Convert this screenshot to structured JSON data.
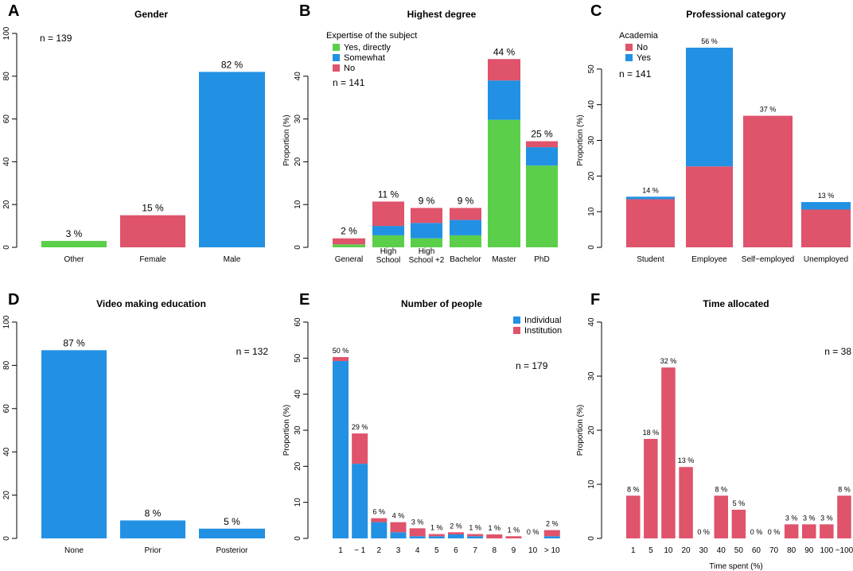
{
  "colors": {
    "green": "#5ccf4a",
    "blue": "#2291e3",
    "red": "#df536b"
  },
  "chart_data": [
    {
      "id": "A",
      "panel_label": "A",
      "type": "bar",
      "title": "Gender",
      "ylabel": "Proportion (%)",
      "xlabel": "",
      "ylim": [
        0,
        100
      ],
      "yticks": [
        "0",
        "20",
        "40",
        "60",
        "80",
        "100"
      ],
      "n_label": "n = 139",
      "categories": [
        "Other",
        "Female",
        "Male"
      ],
      "series": [
        {
          "name": "",
          "values": [
            3,
            15,
            82
          ],
          "colors": [
            "green",
            "red",
            "blue"
          ]
        }
      ],
      "bar_labels": [
        "3 %",
        "15 %",
        "82 %"
      ]
    },
    {
      "id": "B",
      "panel_label": "B",
      "type": "bar",
      "stacked": true,
      "title": "Highest degree",
      "ylabel": "Proportion (%)",
      "xlabel": "",
      "ylim": [
        0,
        50
      ],
      "yticks": [
        "0",
        "10",
        "20",
        "30",
        "40"
      ],
      "n_label": "n = 141",
      "legend_title": "Expertise of the subject",
      "categories": [
        "General",
        "High|School",
        "High|School +2",
        "Bachelor",
        "Master",
        "PhD"
      ],
      "series": [
        {
          "name": "Yes, directly",
          "color": "green",
          "values": [
            0.7,
            2.8,
            2.1,
            2.8,
            29.8,
            19.1
          ]
        },
        {
          "name": "Somewhat",
          "color": "blue",
          "values": [
            0,
            2.2,
            3.6,
            3.6,
            9.2,
            4.3
          ]
        },
        {
          "name": "No",
          "color": "red",
          "values": [
            1.4,
            5.7,
            3.5,
            2.8,
            5.0,
            1.4
          ]
        }
      ],
      "bar_labels": [
        "2 %",
        "11 %",
        "9 %",
        "9 %",
        "44 %",
        "25 %"
      ]
    },
    {
      "id": "C",
      "panel_label": "C",
      "type": "bar",
      "stacked": true,
      "title": "Professional category",
      "ylabel": "Proportion (%)",
      "xlabel": "",
      "ylim": [
        0,
        60
      ],
      "yticks": [
        "0",
        "10",
        "20",
        "30",
        "40",
        "50"
      ],
      "n_label": "n = 141",
      "legend_title": "Academia",
      "categories": [
        "Student",
        "Employee",
        "Self−employed",
        "Unemployed"
      ],
      "series": [
        {
          "name": "No",
          "color": "red",
          "values": [
            13.5,
            22.7,
            36.9,
            10.6
          ]
        },
        {
          "name": "Yes",
          "color": "blue",
          "values": [
            0.7,
            33.3,
            0,
            2.1
          ]
        }
      ],
      "bar_labels": [
        "14 %",
        "56 %",
        "37 %",
        "13 %"
      ]
    },
    {
      "id": "D",
      "panel_label": "D",
      "type": "bar",
      "title": "Video making education",
      "ylabel": "Proportion (%)",
      "xlabel": "",
      "ylim": [
        0,
        100
      ],
      "yticks": [
        "0",
        "20",
        "40",
        "60",
        "80",
        "100"
      ],
      "n_label": "n = 132",
      "categories": [
        "None",
        "Prior",
        "Posterior"
      ],
      "series": [
        {
          "name": "",
          "values": [
            87,
            8.3,
            4.5
          ],
          "colors": [
            "blue",
            "blue",
            "blue"
          ]
        }
      ],
      "bar_labels": [
        "87 %",
        "8 %",
        "5 %"
      ]
    },
    {
      "id": "E",
      "panel_label": "E",
      "type": "bar",
      "stacked": true,
      "title": "Number of people",
      "ylabel": "Proportion (%)",
      "xlabel": "",
      "ylim": [
        0,
        60
      ],
      "yticks": [
        "0",
        "10",
        "20",
        "30",
        "40",
        "50",
        "60"
      ],
      "n_label": "n = 179",
      "categories": [
        "1",
        "~ 1",
        "2",
        "3",
        "4",
        "5",
        "6",
        "7",
        "8",
        "9",
        "10",
        "> 10"
      ],
      "series": [
        {
          "name": "Individual",
          "color": "blue",
          "values": [
            49.2,
            20.7,
            4.5,
            1.7,
            0.6,
            0.6,
            1.1,
            0.6,
            0,
            0,
            0,
            0.6
          ]
        },
        {
          "name": "Institution",
          "color": "red",
          "values": [
            1.1,
            8.4,
            1.1,
            2.8,
            2.2,
            0.6,
            0.6,
            0.6,
            1.1,
            0.6,
            0,
            1.7
          ]
        }
      ],
      "bar_labels": [
        "50 %",
        "29 %",
        "6 %",
        "4 %",
        "3 %",
        "1 %",
        "2 %",
        "1 %",
        "1 %",
        "1 %",
        "0 %",
        "2 %"
      ]
    },
    {
      "id": "F",
      "panel_label": "F",
      "type": "bar",
      "title": "Time allocated",
      "ylabel": "Proportion (%)",
      "xlabel": "Time spent (%)",
      "ylim": [
        0,
        40
      ],
      "yticks": [
        "0",
        "10",
        "20",
        "30",
        "40"
      ],
      "n_label": "n = 38",
      "categories": [
        "1",
        "5",
        "10",
        "20",
        "30",
        "40",
        "50",
        "60",
        "70",
        "80",
        "90",
        "100",
        "~100"
      ],
      "series": [
        {
          "name": "",
          "values": [
            7.9,
            18.4,
            31.6,
            13.2,
            0,
            7.9,
            5.3,
            0,
            0,
            2.6,
            2.6,
            2.6,
            7.9
          ],
          "colors": [
            "red"
          ]
        }
      ],
      "bar_labels": [
        "8 %",
        "18 %",
        "32 %",
        "13 %",
        "0 %",
        "8 %",
        "5 %",
        "0 %",
        "0 %",
        "3 %",
        "3 %",
        "3 %",
        "8 %"
      ]
    }
  ]
}
